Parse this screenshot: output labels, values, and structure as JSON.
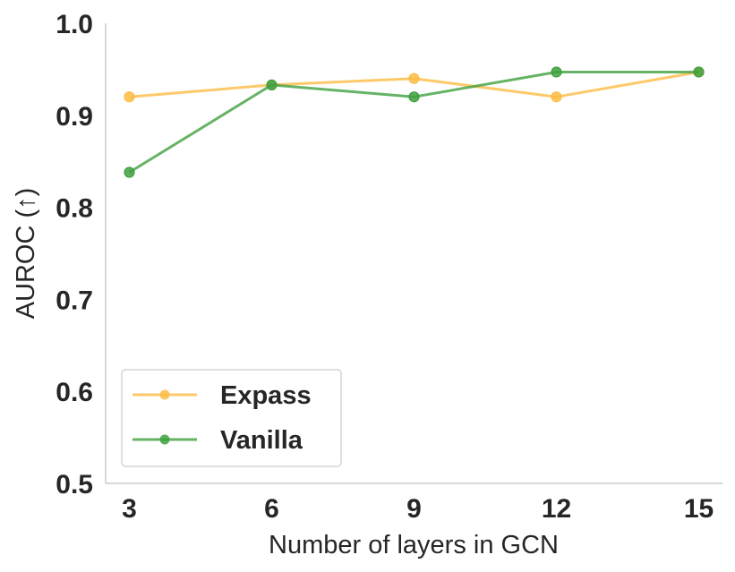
{
  "chart_data": {
    "type": "line",
    "title": "",
    "xlabel": "Number of layers in GCN",
    "ylabel": "AUROC (↑)",
    "x": [
      3,
      6,
      9,
      12,
      15
    ],
    "xticks": [
      "3",
      "6",
      "9",
      "12",
      "15"
    ],
    "yticks": [
      "0.5",
      "0.6",
      "0.7",
      "0.8",
      "0.9",
      "1.0"
    ],
    "ylim": [
      0.5,
      1.0
    ],
    "xlim": [
      2.5,
      15.5
    ],
    "grid": false,
    "legend": "lower-left",
    "series": [
      {
        "name": "Expass",
        "color": "#fcbc45",
        "values": [
          0.92,
          0.933,
          0.94,
          0.92,
          0.947
        ]
      },
      {
        "name": "Vanilla",
        "color": "#40a040",
        "values": [
          0.838,
          0.933,
          0.92,
          0.947,
          0.947
        ]
      }
    ]
  }
}
